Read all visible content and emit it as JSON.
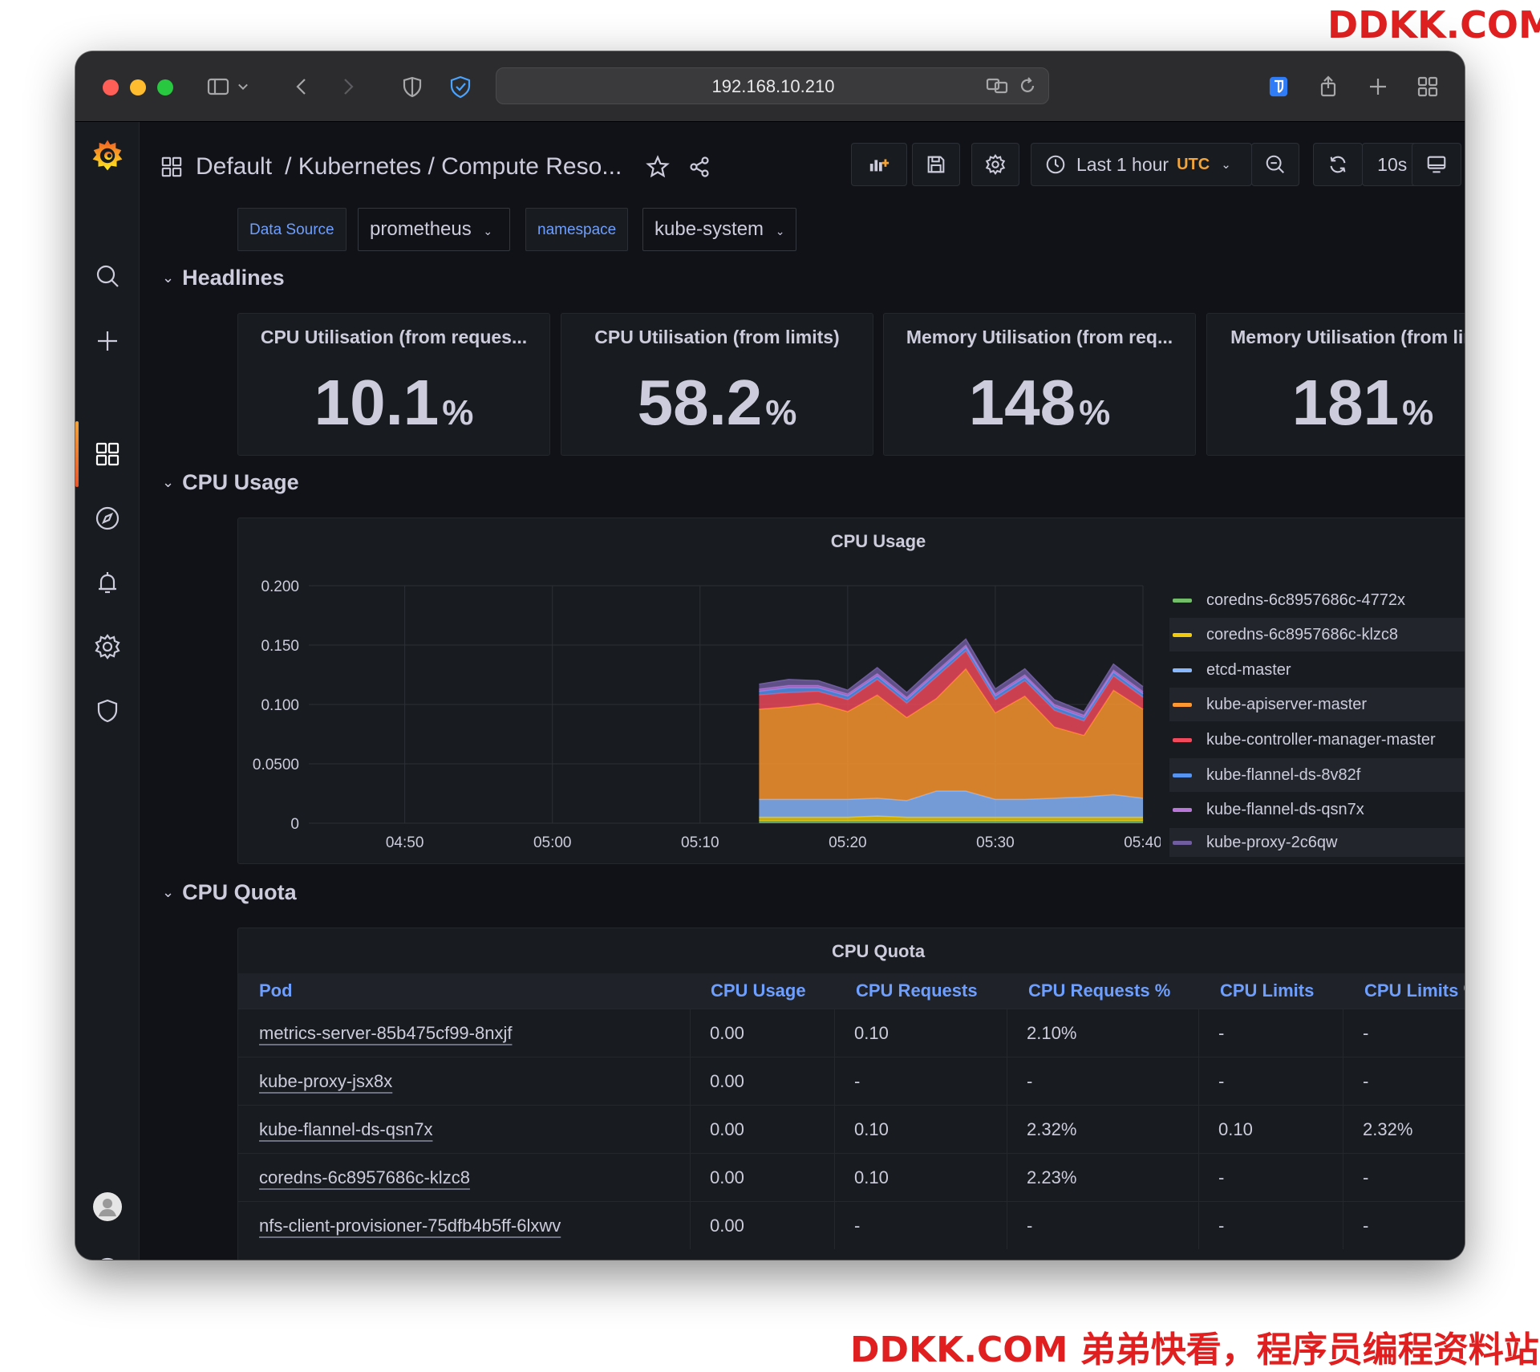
{
  "watermark": {
    "top": "DDKK.COM",
    "bottom": "DDKK.COM 弟弟快看，程序员编程资料站"
  },
  "browser": {
    "url": "192.168.10.210",
    "traffic_colors": [
      "#ff5f57",
      "#febc2e",
      "#28c840"
    ]
  },
  "sidebar": {
    "items": [
      "search-icon",
      "plus-icon",
      "dashboards-icon",
      "explore-icon",
      "alerting-icon",
      "configuration-icon",
      "server-admin-icon",
      "user-avatar",
      "help-icon"
    ],
    "accent": "#f2a33a"
  },
  "header": {
    "folder": "Default",
    "title": "/ Kubernetes / Compute Reso...",
    "time_range": "Last 1 hour",
    "timezone": "UTC",
    "refresh": "10s"
  },
  "variables": [
    {
      "label": "Data Source",
      "value": "prometheus"
    },
    {
      "label": "namespace",
      "value": "kube-system"
    }
  ],
  "rows": {
    "headlines": "Headlines",
    "cpu_usage": "CPU Usage",
    "cpu_quota": "CPU Quota"
  },
  "stats": [
    {
      "title": "CPU Utilisation (from reques...",
      "value": "10.1",
      "unit": "%"
    },
    {
      "title": "CPU Utilisation (from limits)",
      "value": "58.2",
      "unit": "%"
    },
    {
      "title": "Memory Utilisation (from req...",
      "value": "148",
      "unit": "%"
    },
    {
      "title": "Memory Utilisation (from lim...",
      "value": "181",
      "unit": "%"
    }
  ],
  "cpu_usage_panel": {
    "title": "CPU Usage",
    "legend": [
      {
        "name": "coredns-6c8957686c-4772x",
        "color": "#73bf69"
      },
      {
        "name": "coredns-6c8957686c-klzc8",
        "color": "#f2cc0c"
      },
      {
        "name": "etcd-master",
        "color": "#8ab8ff"
      },
      {
        "name": "kube-apiserver-master",
        "color": "#ff9830"
      },
      {
        "name": "kube-controller-manager-master",
        "color": "#f2495c"
      },
      {
        "name": "kube-flannel-ds-8v82f",
        "color": "#5794f2"
      },
      {
        "name": "kube-flannel-ds-qsn7x",
        "color": "#b877d9"
      },
      {
        "name": "kube-proxy-2c6qw",
        "color": "#705da0"
      }
    ]
  },
  "chart_data": {
    "type": "area",
    "title": "CPU Usage",
    "xlabel": "",
    "ylabel": "",
    "x_ticks": [
      "04:50",
      "05:00",
      "05:10",
      "05:20",
      "05:30",
      "05:40"
    ],
    "y_ticks": [
      "0",
      "0.0500",
      "0.100",
      "0.150",
      "0.200"
    ],
    "ylim": [
      0,
      0.2
    ],
    "x": [
      "05:14",
      "05:16",
      "05:18",
      "05:20",
      "05:22",
      "05:24",
      "05:26",
      "05:28",
      "05:30",
      "05:32",
      "05:34",
      "05:36",
      "05:38",
      "05:40"
    ],
    "stacked": true,
    "grid": true,
    "legend_position": "right",
    "series": [
      {
        "name": "coredns-6c8957686c-4772x",
        "color": "#73bf69",
        "values": [
          0.002,
          0.002,
          0.002,
          0.002,
          0.002,
          0.002,
          0.002,
          0.002,
          0.002,
          0.002,
          0.002,
          0.002,
          0.002,
          0.002
        ]
      },
      {
        "name": "coredns-6c8957686c-klzc8",
        "color": "#f2cc0c",
        "values": [
          0.003,
          0.003,
          0.003,
          0.003,
          0.004,
          0.003,
          0.003,
          0.003,
          0.003,
          0.003,
          0.003,
          0.003,
          0.003,
          0.003
        ]
      },
      {
        "name": "etcd-master",
        "color": "#8ab8ff",
        "values": [
          0.015,
          0.015,
          0.015,
          0.015,
          0.015,
          0.014,
          0.022,
          0.022,
          0.015,
          0.015,
          0.016,
          0.017,
          0.019,
          0.016
        ]
      },
      {
        "name": "kube-apiserver-master",
        "color": "#ff9830",
        "values": [
          0.076,
          0.078,
          0.081,
          0.074,
          0.087,
          0.07,
          0.078,
          0.103,
          0.073,
          0.087,
          0.06,
          0.052,
          0.088,
          0.075
        ]
      },
      {
        "name": "kube-controller-manager-master",
        "color": "#f2495c",
        "values": [
          0.012,
          0.012,
          0.01,
          0.01,
          0.013,
          0.012,
          0.018,
          0.015,
          0.011,
          0.013,
          0.014,
          0.012,
          0.012,
          0.01
        ]
      },
      {
        "name": "kube-flannel-ds-8v82f",
        "color": "#5794f2",
        "values": [
          0.003,
          0.004,
          0.003,
          0.003,
          0.003,
          0.003,
          0.003,
          0.003,
          0.003,
          0.003,
          0.003,
          0.003,
          0.003,
          0.003
        ]
      },
      {
        "name": "kube-flannel-ds-qsn7x",
        "color": "#b877d9",
        "values": [
          0.002,
          0.002,
          0.002,
          0.002,
          0.002,
          0.002,
          0.002,
          0.002,
          0.002,
          0.002,
          0.002,
          0.002,
          0.002,
          0.002
        ]
      },
      {
        "name": "kube-proxy-2c6qw",
        "color": "#705da0",
        "values": [
          0.004,
          0.005,
          0.004,
          0.003,
          0.005,
          0.004,
          0.005,
          0.005,
          0.004,
          0.005,
          0.004,
          0.003,
          0.005,
          0.004
        ]
      }
    ]
  },
  "cpu_quota_panel": {
    "title": "CPU Quota",
    "columns": [
      "Pod",
      "CPU Usage",
      "CPU Requests",
      "CPU Requests %",
      "CPU Limits",
      "CPU Limits %"
    ],
    "rows": [
      [
        "metrics-server-85b475cf99-8nxjf",
        "0.00",
        "0.10",
        "2.10%",
        "-",
        "-"
      ],
      [
        "kube-proxy-jsx8x",
        "0.00",
        "-",
        "-",
        "-",
        "-"
      ],
      [
        "kube-flannel-ds-qsn7x",
        "0.00",
        "0.10",
        "2.32%",
        "0.10",
        "2.32%"
      ],
      [
        "coredns-6c8957686c-klzc8",
        "0.00",
        "0.10",
        "2.23%",
        "-",
        "-"
      ],
      [
        "nfs-client-provisioner-75dfb4b5ff-6lxwv",
        "0.00",
        "-",
        "-",
        "-",
        "-"
      ]
    ]
  }
}
